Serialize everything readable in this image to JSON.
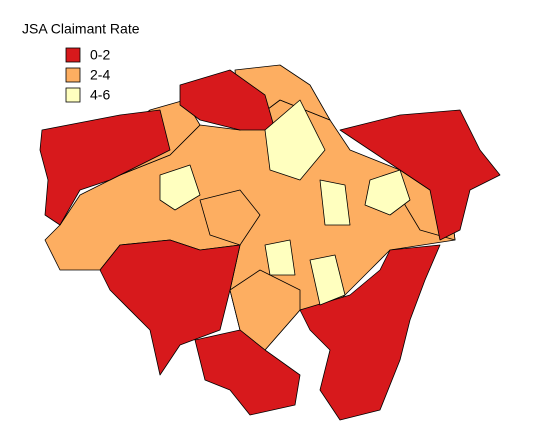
{
  "legend": {
    "title": "JSA Claimant Rate",
    "entries": [
      {
        "label": "0-2",
        "color": "#d7191c"
      },
      {
        "label": "2-4",
        "color": "#fdae61"
      },
      {
        "label": "4-6",
        "color": "#ffffbf"
      }
    ]
  }
}
